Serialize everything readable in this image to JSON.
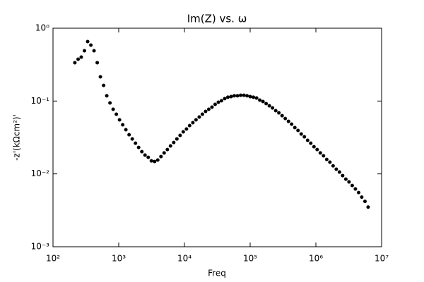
{
  "chart_data": {
    "type": "scatter",
    "title": "Im(Z) vs. ω",
    "xlabel": "Freq",
    "ylabel": "-z'(kΩcm²)'",
    "log_x": true,
    "log_y": true,
    "color": "#000000",
    "xlim": [
      100,
      10000000
    ],
    "xticks": [
      {
        "value": 100,
        "label": "10²"
      },
      {
        "value": 1000,
        "label": "10³"
      },
      {
        "value": 10000,
        "label": "10⁴"
      },
      {
        "value": 100000,
        "label": "10⁵"
      },
      {
        "value": 1000000,
        "label": "10⁶"
      },
      {
        "value": 10000000,
        "label": "10⁷"
      }
    ],
    "ylim": [
      0.001,
      1
    ],
    "yticks": [
      {
        "value": 0.001,
        "label": "10⁻³"
      },
      {
        "value": 0.01,
        "label": "10⁻²"
      },
      {
        "value": 0.1,
        "label": "10⁻¹"
      },
      {
        "value": 1,
        "label": "10⁰"
      }
    ],
    "x": [
      215,
      241,
      269,
      301,
      337,
      377,
      421,
      471,
      526,
      589,
      658,
      736,
      823,
      920,
      1028,
      1150,
      1285,
      1438,
      1607,
      1799,
      2009,
      2249,
      2512,
      2812,
      3141,
      3516,
      3926,
      4395,
      4909,
      5495,
      6138,
      6871,
      7674,
      8590,
      9594,
      10740,
      11990,
      13430,
      15000,
      16790,
      18750,
      20990,
      23440,
      26240,
      29310,
      32810,
      36640,
      41020,
      45810,
      51290,
      57280,
      64120,
      71610,
      80170,
      89540,
      100200,
      111900,
      125300,
      140000,
      156700,
      175000,
      195900,
      218800,
      244900,
      273500,
      306200,
      342000,
      382800,
      427600,
      478600,
      534600,
      598400,
      668300,
      748200,
      835700,
      935400,
      1045000,
      1169000,
      1306000,
      1462000,
      1633000,
      1828000,
      2042000,
      2286000,
      2553000,
      2858000,
      3192000,
      3573000,
      3990000,
      4467000,
      4989000,
      5585000,
      6237000
    ],
    "values": [
      0.336,
      0.375,
      0.401,
      0.49,
      0.655,
      0.586,
      0.49,
      0.336,
      0.215,
      0.164,
      0.118,
      0.0942,
      0.0771,
      0.066,
      0.0552,
      0.0472,
      0.0404,
      0.0345,
      0.0302,
      0.0264,
      0.0231,
      0.0202,
      0.0181,
      0.0169,
      0.0151,
      0.0148,
      0.0155,
      0.0173,
      0.0194,
      0.0216,
      0.0242,
      0.027,
      0.0302,
      0.0338,
      0.0378,
      0.0413,
      0.0461,
      0.0505,
      0.0552,
      0.0603,
      0.066,
      0.0721,
      0.0771,
      0.0824,
      0.0901,
      0.0964,
      0.101,
      0.108,
      0.113,
      0.115,
      0.118,
      0.118,
      0.12,
      0.12,
      0.118,
      0.115,
      0.113,
      0.11,
      0.103,
      0.0985,
      0.0921,
      0.0861,
      0.0805,
      0.0737,
      0.0689,
      0.063,
      0.0576,
      0.0527,
      0.0482,
      0.0432,
      0.0395,
      0.0353,
      0.0323,
      0.0289,
      0.0264,
      0.0236,
      0.0216,
      0.0194,
      0.0177,
      0.0158,
      0.0145,
      0.0129,
      0.0116,
      0.0106,
      0.00948,
      0.00848,
      0.00776,
      0.00693,
      0.00621,
      0.00555,
      0.0048,
      0.0042,
      0.0035
    ]
  }
}
